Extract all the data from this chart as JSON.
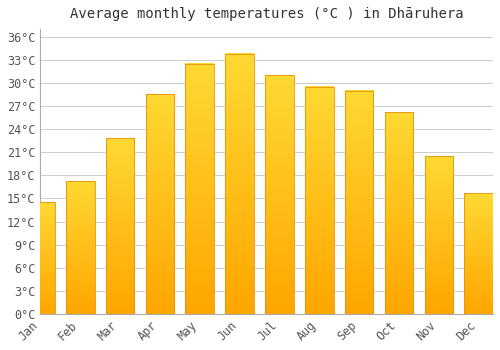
{
  "title": "Average monthly temperatures (°C ) in Dhāruhera",
  "months": [
    "Jan",
    "Feb",
    "Mar",
    "Apr",
    "May",
    "Jun",
    "Jul",
    "Aug",
    "Sep",
    "Oct",
    "Nov",
    "Dec"
  ],
  "values": [
    14.5,
    17.2,
    22.8,
    28.5,
    32.5,
    33.8,
    31.0,
    29.5,
    29.0,
    26.2,
    20.5,
    15.7
  ],
  "bar_color_bottom": "#FFA500",
  "bar_color_top": "#FFD966",
  "background_color": "#ffffff",
  "grid_color": "#cccccc",
  "ylim": [
    0,
    37
  ],
  "ytick_step": 3,
  "title_fontsize": 10,
  "tick_fontsize": 8.5,
  "spine_color": "#aaaaaa"
}
